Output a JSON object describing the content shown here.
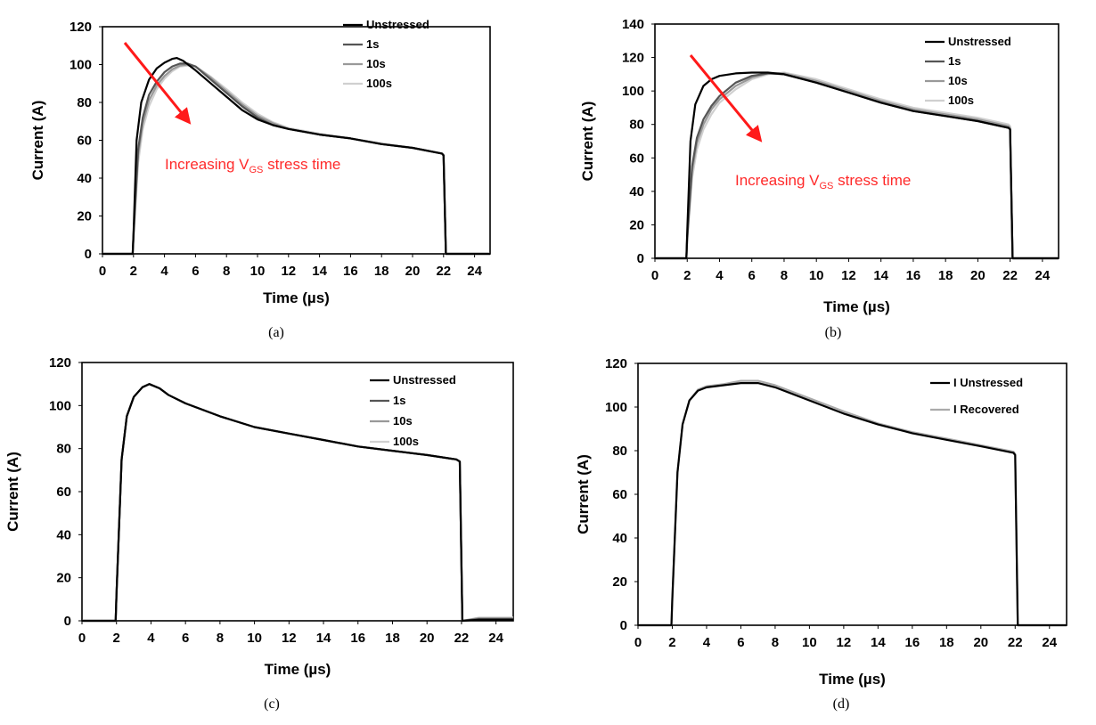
{
  "chart_data": [
    {
      "type": "line",
      "panel": "a",
      "caption": "(a)",
      "xlabel": "Time (µs)",
      "ylabel": "Current (A)",
      "xlim": [
        0,
        25
      ],
      "ylim": [
        0,
        120
      ],
      "xticks": [
        0,
        2,
        4,
        6,
        8,
        10,
        12,
        14,
        16,
        18,
        20,
        22,
        24
      ],
      "yticks": [
        0,
        20,
        40,
        60,
        80,
        100,
        120
      ],
      "legend_position": "top-right",
      "annotation": {
        "text": "Increasing V",
        "sub": "GS",
        "rest": " stress time"
      },
      "series": [
        {
          "name": "Unstressed",
          "color": "#000000",
          "x": [
            0,
            1.95,
            2.0,
            2.2,
            2.5,
            3.0,
            3.5,
            4.0,
            4.5,
            4.8,
            5.2,
            6.0,
            7.0,
            8.0,
            9.0,
            10.0,
            11.0,
            12.0,
            14.0,
            16.0,
            18.0,
            20.0,
            21.9,
            22.0,
            22.15,
            25.0
          ],
          "y": [
            0,
            0,
            10,
            60,
            80,
            92,
            98,
            101,
            103,
            103.5,
            102,
            97,
            90,
            83,
            76,
            71,
            68,
            66,
            63,
            61,
            58,
            56,
            53,
            52,
            0,
            0
          ]
        },
        {
          "name": "1s",
          "color": "#555555",
          "x": [
            0,
            1.95,
            2.0,
            2.3,
            2.6,
            3.0,
            3.5,
            4.0,
            4.5,
            5.0,
            5.5,
            6.0,
            7.0,
            8.0,
            9.0,
            10.0,
            11.0,
            12.0,
            14.0,
            16.0,
            18.0,
            20.0,
            21.9,
            22.0,
            22.15,
            25.0
          ],
          "y": [
            0,
            0,
            10,
            55,
            72,
            84,
            91,
            96,
            99,
            100.5,
            100.5,
            99,
            92,
            85,
            78,
            72,
            68,
            66,
            63,
            61,
            58,
            56,
            53,
            52,
            0,
            0
          ]
        },
        {
          "name": "10s",
          "color": "#999999",
          "x": [
            0,
            1.95,
            2.0,
            2.3,
            2.6,
            3.0,
            3.5,
            4.0,
            4.5,
            5.0,
            5.5,
            6.0,
            7.0,
            8.0,
            9.0,
            10.0,
            11.0,
            12.0,
            14.0,
            16.0,
            18.0,
            20.0,
            21.9,
            22.0,
            22.15,
            25.0
          ],
          "y": [
            0,
            0,
            9,
            52,
            69,
            81,
            89,
            94,
            97.5,
            99.5,
            100,
            99,
            93,
            86,
            79,
            73,
            69,
            66,
            63,
            61,
            58,
            56,
            53,
            52,
            0,
            0
          ]
        },
        {
          "name": "100s",
          "color": "#d0d0d0",
          "x": [
            0,
            1.95,
            2.0,
            2.3,
            2.6,
            3.0,
            3.5,
            4.0,
            4.5,
            5.0,
            5.5,
            6.0,
            7.0,
            8.0,
            9.0,
            10.0,
            11.0,
            12.0,
            14.0,
            16.0,
            18.0,
            20.0,
            21.9,
            22.0,
            22.15,
            25.0
          ],
          "y": [
            0,
            0,
            8,
            48,
            66,
            78,
            87,
            92.5,
            96.5,
            99,
            99.5,
            99,
            93.5,
            87,
            80,
            74,
            69.5,
            66.5,
            63.5,
            61,
            58.5,
            56,
            53,
            52,
            0,
            0
          ]
        }
      ]
    },
    {
      "type": "line",
      "panel": "b",
      "caption": "(b)",
      "xlabel": "Time (µs)",
      "ylabel": "Current (A)",
      "xlim": [
        0,
        25
      ],
      "ylim": [
        0,
        140
      ],
      "xticks": [
        0,
        2,
        4,
        6,
        8,
        10,
        12,
        14,
        16,
        18,
        20,
        22,
        24
      ],
      "yticks": [
        0,
        20,
        40,
        60,
        80,
        100,
        120,
        140
      ],
      "legend_position": "top-right",
      "annotation": {
        "text": "Increasing V",
        "sub": "GS",
        "rest": " stress time"
      },
      "series": [
        {
          "name": "Unstressed",
          "color": "#000000",
          "x": [
            0,
            1.95,
            2.0,
            2.2,
            2.5,
            3.0,
            3.5,
            4.0,
            5.0,
            6.0,
            7.0,
            8.0,
            10.0,
            12.0,
            14.0,
            16.0,
            18.0,
            20.0,
            21.9,
            22.0,
            22.15,
            25.0
          ],
          "y": [
            0,
            0,
            15,
            70,
            92,
            103,
            107,
            109,
            110.5,
            111,
            111,
            110,
            105,
            99,
            93,
            88,
            85,
            82,
            78,
            77,
            0,
            0
          ]
        },
        {
          "name": "1s",
          "color": "#555555",
          "x": [
            0,
            1.95,
            2.0,
            2.3,
            2.6,
            3.0,
            3.5,
            4.0,
            5.0,
            6.0,
            7.0,
            8.0,
            10.0,
            12.0,
            14.0,
            16.0,
            18.0,
            20.0,
            21.9,
            22.0,
            22.15,
            25.0
          ],
          "y": [
            0,
            0,
            12,
            55,
            72,
            83,
            91,
            97,
            105,
            109,
            110.5,
            110,
            105,
            99,
            93,
            88,
            85,
            82,
            78,
            77,
            0,
            0
          ]
        },
        {
          "name": "10s",
          "color": "#999999",
          "x": [
            0,
            1.95,
            2.0,
            2.3,
            2.6,
            3.0,
            3.5,
            4.0,
            5.0,
            6.0,
            7.0,
            8.0,
            10.0,
            12.0,
            14.0,
            16.0,
            18.0,
            20.0,
            21.9,
            22.0,
            22.15,
            25.0
          ],
          "y": [
            0,
            0,
            11,
            52,
            69,
            80,
            89,
            95,
            103,
            108,
            110.5,
            110.5,
            106,
            100,
            94,
            89,
            86,
            83,
            79,
            78,
            0,
            0
          ]
        },
        {
          "name": "100s",
          "color": "#d0d0d0",
          "x": [
            0,
            1.95,
            2.0,
            2.3,
            2.6,
            3.0,
            3.5,
            4.0,
            5.0,
            6.0,
            7.0,
            8.0,
            10.0,
            12.0,
            14.0,
            16.0,
            18.0,
            20.0,
            21.9,
            22.0,
            22.15,
            25.0
          ],
          "y": [
            0,
            0,
            10,
            48,
            65,
            77,
            86,
            93,
            101,
            107,
            110,
            111,
            107,
            101,
            95,
            90,
            87,
            84,
            80,
            79,
            0,
            0
          ]
        }
      ]
    },
    {
      "type": "line",
      "panel": "c",
      "caption": "(c)",
      "xlabel": "Time (µs)",
      "ylabel": "Current (A)",
      "xlim": [
        0,
        25
      ],
      "ylim": [
        0,
        120
      ],
      "xticks": [
        0,
        2,
        4,
        6,
        8,
        10,
        12,
        14,
        16,
        18,
        20,
        22,
        24
      ],
      "yticks": [
        0,
        20,
        40,
        60,
        80,
        100,
        120
      ],
      "legend_position": "top-right",
      "series": [
        {
          "name": "Unstressed",
          "color": "#000000",
          "x": [
            0,
            1.95,
            2.0,
            2.3,
            2.6,
            3.0,
            3.5,
            3.9,
            4.5,
            5.0,
            6.0,
            8.0,
            10.0,
            12.0,
            14.0,
            16.0,
            18.0,
            20.0,
            21.7,
            21.9,
            22.05,
            23.0,
            25.0
          ],
          "y": [
            0,
            0,
            12,
            75,
            95,
            104,
            108.5,
            110,
            108,
            105,
            101,
            95,
            90,
            87,
            84,
            81,
            79,
            77,
            75,
            74,
            0,
            0.5,
            0.5
          ]
        },
        {
          "name": "1s",
          "color": "#555555",
          "x": [
            0,
            1.95,
            2.0,
            2.3,
            2.6,
            3.0,
            3.5,
            3.9,
            4.5,
            5.0,
            6.0,
            8.0,
            10.0,
            12.0,
            14.0,
            16.0,
            18.0,
            20.0,
            21.7,
            21.9,
            22.05,
            23.0,
            25.0
          ],
          "y": [
            0,
            0,
            12,
            75,
            95,
            104,
            108.5,
            110,
            108,
            105,
            101,
            95,
            90,
            87,
            84,
            81,
            79,
            77,
            75,
            74,
            0,
            0.8,
            0.8
          ]
        },
        {
          "name": "10s",
          "color": "#999999",
          "x": [
            0,
            1.95,
            2.0,
            2.3,
            2.6,
            3.0,
            3.5,
            3.9,
            4.5,
            5.0,
            6.0,
            8.0,
            10.0,
            12.0,
            14.0,
            16.0,
            18.0,
            20.0,
            21.7,
            21.9,
            22.05,
            23.0,
            25.0
          ],
          "y": [
            0,
            0,
            12,
            75,
            95,
            104,
            108.5,
            110,
            108,
            105,
            101,
            95,
            90,
            87,
            84,
            81,
            79,
            77,
            75,
            74,
            0,
            1.2,
            1.2
          ]
        },
        {
          "name": "100s",
          "color": "#d0d0d0",
          "x": [
            0,
            1.95,
            2.0,
            2.3,
            2.6,
            3.0,
            3.5,
            3.9,
            4.5,
            5.0,
            6.0,
            8.0,
            10.0,
            12.0,
            14.0,
            16.0,
            18.0,
            20.0,
            21.7,
            21.9,
            22.05,
            23.0,
            25.0
          ],
          "y": [
            0,
            0,
            12,
            75,
            95,
            104,
            108.5,
            110,
            108,
            105,
            101,
            95,
            90,
            87,
            84,
            81,
            79,
            77,
            75,
            74,
            0,
            1.5,
            1.5
          ]
        }
      ]
    },
    {
      "type": "line",
      "panel": "d",
      "caption": "(d)",
      "xlabel": "Time (µs)",
      "ylabel": "Current (A)",
      "xlim": [
        0,
        25
      ],
      "ylim": [
        0,
        120
      ],
      "xticks": [
        0,
        2,
        4,
        6,
        8,
        10,
        12,
        14,
        16,
        18,
        20,
        22,
        24
      ],
      "yticks": [
        0,
        20,
        40,
        60,
        80,
        100,
        120
      ],
      "legend_position": "top-right",
      "series": [
        {
          "name": "I Unstressed",
          "color": "#000000",
          "x": [
            0,
            1.95,
            2.0,
            2.3,
            2.6,
            3.0,
            3.5,
            4.0,
            5.0,
            6.0,
            7.0,
            8.0,
            10.0,
            12.0,
            14.0,
            16.0,
            18.0,
            20.0,
            21.9,
            22.0,
            22.15,
            25.0
          ],
          "y": [
            0,
            0,
            12,
            70,
            92,
            103,
            107.5,
            109,
            110,
            111,
            111,
            109,
            103,
            97,
            92,
            88,
            85,
            82,
            79,
            78,
            0,
            0
          ]
        },
        {
          "name": "I Recovered",
          "color": "#aaaaaa",
          "x": [
            0,
            1.95,
            2.0,
            2.3,
            2.6,
            3.0,
            3.5,
            4.0,
            5.0,
            6.0,
            7.0,
            8.0,
            10.0,
            12.0,
            14.0,
            16.0,
            18.0,
            20.0,
            21.9,
            22.0,
            22.15,
            25.0
          ],
          "y": [
            0,
            0,
            12,
            70,
            92,
            103,
            108,
            109.5,
            110.5,
            112,
            112,
            110,
            104,
            98,
            92.5,
            88.5,
            85.5,
            82.5,
            79.5,
            78.5,
            0,
            0
          ]
        }
      ]
    }
  ]
}
